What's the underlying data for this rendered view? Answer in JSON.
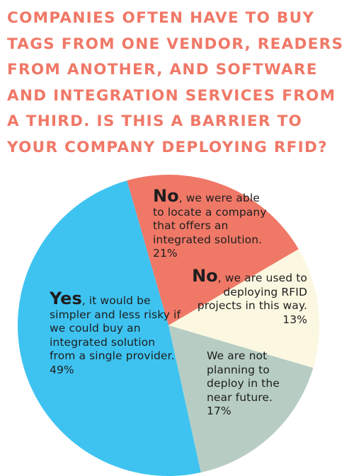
{
  "title": "COMPANIES OFTEN HAVE TO BUY TAGS FROM ONE VENDOR, READERS FROM ANOTHER, AND SOFTWARE AND INTEGRATION SERVICES FROM A THIRD. IS THIS A BARRIER TO YOUR COMPANY DEPLOYING RFID?",
  "chart_data": {
    "type": "pie",
    "title": "COMPANIES OFTEN HAVE TO BUY TAGS FROM ONE VENDOR, READERS FROM ANOTHER, AND SOFTWARE AND INTEGRATION SERVICES FROM A THIRD. IS THIS A BARRIER TO YOUR COMPANY DEPLOYING RFID?",
    "slices": [
      {
        "lead": "No",
        "text": ", we were able to locate a company that offers an integrated solution. 21%",
        "value": 21,
        "color": "#f07867"
      },
      {
        "lead": "No",
        "text": ", we are used to deploying RFID projects in this way. 13%",
        "value": 13,
        "color": "#fbf7e1"
      },
      {
        "lead": "",
        "text": "We are not planning to deploy in the near future. 17%",
        "value": 17,
        "color": "#b7cdc3"
      },
      {
        "lead": "Yes",
        "text": ", it would be simpler and less risky if we could buy an integrated solution from a single provider. 49%",
        "value": 49,
        "color": "#3ec3f1"
      }
    ]
  }
}
